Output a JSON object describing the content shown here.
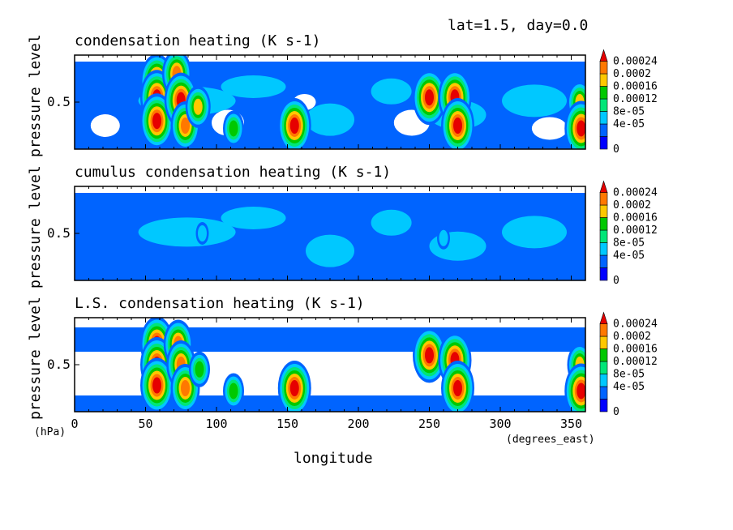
{
  "header": {
    "label": "lat=1.5, day=0.0"
  },
  "chart_data": [
    {
      "type": "heatmap",
      "title": "condensation heating (K s-1)",
      "ylabel": "pressure level",
      "yticks": [
        "0.5"
      ],
      "xlim": [
        0,
        360
      ],
      "hot_spots": [
        {
          "lon": 58,
          "lev": 0.72,
          "peak": 0.00026
        },
        {
          "lon": 58,
          "lev": 0.55,
          "peak": 0.00024
        },
        {
          "lon": 58,
          "lev": 0.3,
          "peak": 0.00026
        },
        {
          "lon": 72,
          "lev": 0.8,
          "peak": 0.00022
        },
        {
          "lon": 75,
          "lev": 0.52,
          "peak": 0.00024
        },
        {
          "lon": 78,
          "lev": 0.25,
          "peak": 0.0002
        },
        {
          "lon": 87,
          "lev": 0.45,
          "peak": 0.00016
        },
        {
          "lon": 112,
          "lev": 0.22,
          "peak": 0.00012
        },
        {
          "lon": 155,
          "lev": 0.25,
          "peak": 0.00024
        },
        {
          "lon": 250,
          "lev": 0.55,
          "peak": 0.00026
        },
        {
          "lon": 268,
          "lev": 0.55,
          "peak": 0.00024
        },
        {
          "lon": 270,
          "lev": 0.25,
          "peak": 0.00026
        },
        {
          "lon": 356,
          "lev": 0.5,
          "peak": 0.00018
        },
        {
          "lon": 357,
          "lev": 0.22,
          "peak": 0.00024
        }
      ]
    },
    {
      "type": "heatmap",
      "title": "cumulus condensation heating (K s-1)",
      "ylabel": "pressure level",
      "yticks": [
        "0.5"
      ],
      "xlim": [
        0,
        360
      ],
      "hot_spots": [
        {
          "lon": 90,
          "lev": 0.5,
          "peak": 6e-05
        },
        {
          "lon": 260,
          "lev": 0.45,
          "peak": 6e-05
        }
      ]
    },
    {
      "type": "heatmap",
      "title": "L.S. condensation heating (K s-1)",
      "ylabel": "pressure level",
      "yticks": [
        "0.5"
      ],
      "xlim": [
        0,
        360
      ],
      "xticks": [
        "0",
        "50",
        "100",
        "150",
        "200",
        "250",
        "300",
        "350"
      ],
      "xunit": "(degrees_east)",
      "yunit": "(hPa)",
      "xlabel": "longitude",
      "hot_spots": [
        {
          "lon": 58,
          "lev": 0.72,
          "peak": 0.00024
        },
        {
          "lon": 58,
          "lev": 0.5,
          "peak": 0.00024
        },
        {
          "lon": 58,
          "lev": 0.28,
          "peak": 0.00026
        },
        {
          "lon": 73,
          "lev": 0.72,
          "peak": 0.0002
        },
        {
          "lon": 75,
          "lev": 0.5,
          "peak": 0.00022
        },
        {
          "lon": 78,
          "lev": 0.25,
          "peak": 0.0002
        },
        {
          "lon": 88,
          "lev": 0.45,
          "peak": 0.00014
        },
        {
          "lon": 112,
          "lev": 0.22,
          "peak": 0.00012
        },
        {
          "lon": 155,
          "lev": 0.25,
          "peak": 0.00024
        },
        {
          "lon": 250,
          "lev": 0.6,
          "peak": 0.00026
        },
        {
          "lon": 268,
          "lev": 0.55,
          "peak": 0.00024
        },
        {
          "lon": 270,
          "lev": 0.25,
          "peak": 0.00026
        },
        {
          "lon": 356,
          "lev": 0.5,
          "peak": 0.00016
        },
        {
          "lon": 357,
          "lev": 0.22,
          "peak": 0.00024
        }
      ]
    }
  ],
  "colorbar": {
    "labels": [
      "0.00024",
      "0.0002",
      "0.00016",
      "0.00012",
      "8e-05",
      "4e-05",
      "0"
    ],
    "colors": [
      "#0000ff",
      "#0064ff",
      "#00c8ff",
      "#00e678",
      "#00c800",
      "#ffc800",
      "#ff7800",
      "#e60000"
    ]
  }
}
